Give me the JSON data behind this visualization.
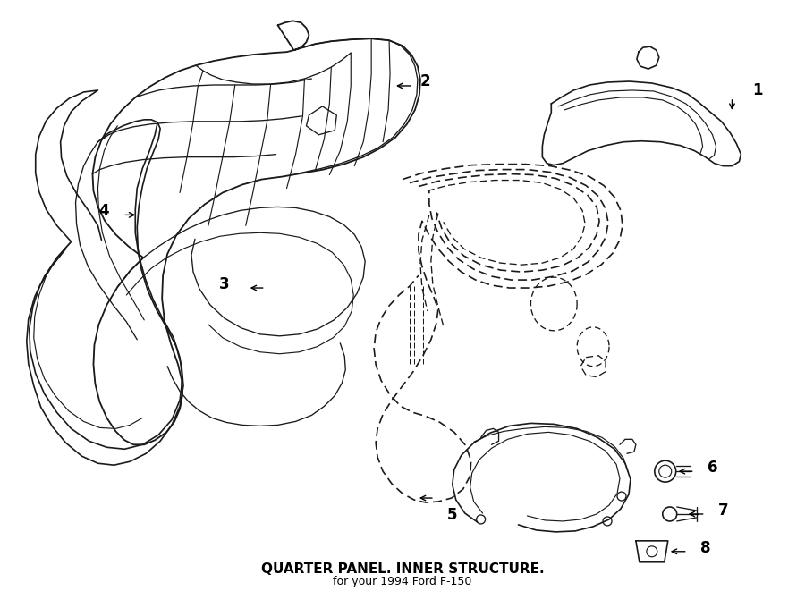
{
  "background_color": "#ffffff",
  "line_color": "#1a1a1a",
  "fig_width": 9.0,
  "fig_height": 6.61,
  "dpi": 100,
  "header_text": "QUARTER PANEL. INNER STRUCTURE.",
  "sub_header": "for your 1994 Ford F-150",
  "header_fontsize": 11,
  "sub_fontsize": 9
}
